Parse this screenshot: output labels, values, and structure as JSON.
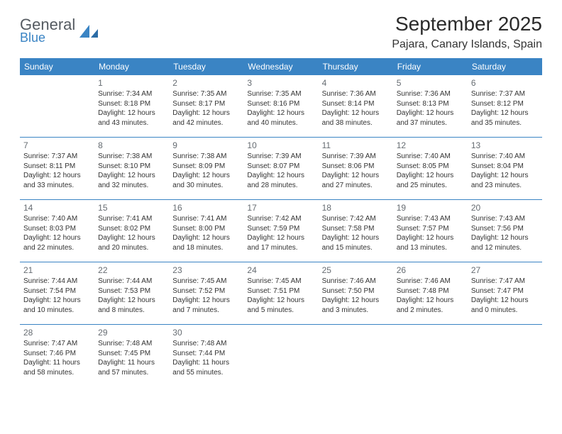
{
  "logo": {
    "main": "General",
    "sub": "Blue"
  },
  "title": "September 2025",
  "location": "Pajara, Canary Islands, Spain",
  "colors": {
    "header_bg": "#3a84c4",
    "header_text": "#ffffff",
    "rule": "#3a84c4",
    "logo_gray": "#555b61",
    "logo_blue": "#3a84c4",
    "daynum": "#666c72",
    "body_text": "#333333"
  },
  "weekdays": [
    "Sunday",
    "Monday",
    "Tuesday",
    "Wednesday",
    "Thursday",
    "Friday",
    "Saturday"
  ],
  "weeks": [
    [
      null,
      {
        "n": "1",
        "sr": "7:34 AM",
        "ss": "8:18 PM",
        "dl": "12 hours and 43 minutes."
      },
      {
        "n": "2",
        "sr": "7:35 AM",
        "ss": "8:17 PM",
        "dl": "12 hours and 42 minutes."
      },
      {
        "n": "3",
        "sr": "7:35 AM",
        "ss": "8:16 PM",
        "dl": "12 hours and 40 minutes."
      },
      {
        "n": "4",
        "sr": "7:36 AM",
        "ss": "8:14 PM",
        "dl": "12 hours and 38 minutes."
      },
      {
        "n": "5",
        "sr": "7:36 AM",
        "ss": "8:13 PM",
        "dl": "12 hours and 37 minutes."
      },
      {
        "n": "6",
        "sr": "7:37 AM",
        "ss": "8:12 PM",
        "dl": "12 hours and 35 minutes."
      }
    ],
    [
      {
        "n": "7",
        "sr": "7:37 AM",
        "ss": "8:11 PM",
        "dl": "12 hours and 33 minutes."
      },
      {
        "n": "8",
        "sr": "7:38 AM",
        "ss": "8:10 PM",
        "dl": "12 hours and 32 minutes."
      },
      {
        "n": "9",
        "sr": "7:38 AM",
        "ss": "8:09 PM",
        "dl": "12 hours and 30 minutes."
      },
      {
        "n": "10",
        "sr": "7:39 AM",
        "ss": "8:07 PM",
        "dl": "12 hours and 28 minutes."
      },
      {
        "n": "11",
        "sr": "7:39 AM",
        "ss": "8:06 PM",
        "dl": "12 hours and 27 minutes."
      },
      {
        "n": "12",
        "sr": "7:40 AM",
        "ss": "8:05 PM",
        "dl": "12 hours and 25 minutes."
      },
      {
        "n": "13",
        "sr": "7:40 AM",
        "ss": "8:04 PM",
        "dl": "12 hours and 23 minutes."
      }
    ],
    [
      {
        "n": "14",
        "sr": "7:40 AM",
        "ss": "8:03 PM",
        "dl": "12 hours and 22 minutes."
      },
      {
        "n": "15",
        "sr": "7:41 AM",
        "ss": "8:02 PM",
        "dl": "12 hours and 20 minutes."
      },
      {
        "n": "16",
        "sr": "7:41 AM",
        "ss": "8:00 PM",
        "dl": "12 hours and 18 minutes."
      },
      {
        "n": "17",
        "sr": "7:42 AM",
        "ss": "7:59 PM",
        "dl": "12 hours and 17 minutes."
      },
      {
        "n": "18",
        "sr": "7:42 AM",
        "ss": "7:58 PM",
        "dl": "12 hours and 15 minutes."
      },
      {
        "n": "19",
        "sr": "7:43 AM",
        "ss": "7:57 PM",
        "dl": "12 hours and 13 minutes."
      },
      {
        "n": "20",
        "sr": "7:43 AM",
        "ss": "7:56 PM",
        "dl": "12 hours and 12 minutes."
      }
    ],
    [
      {
        "n": "21",
        "sr": "7:44 AM",
        "ss": "7:54 PM",
        "dl": "12 hours and 10 minutes."
      },
      {
        "n": "22",
        "sr": "7:44 AM",
        "ss": "7:53 PM",
        "dl": "12 hours and 8 minutes."
      },
      {
        "n": "23",
        "sr": "7:45 AM",
        "ss": "7:52 PM",
        "dl": "12 hours and 7 minutes."
      },
      {
        "n": "24",
        "sr": "7:45 AM",
        "ss": "7:51 PM",
        "dl": "12 hours and 5 minutes."
      },
      {
        "n": "25",
        "sr": "7:46 AM",
        "ss": "7:50 PM",
        "dl": "12 hours and 3 minutes."
      },
      {
        "n": "26",
        "sr": "7:46 AM",
        "ss": "7:48 PM",
        "dl": "12 hours and 2 minutes."
      },
      {
        "n": "27",
        "sr": "7:47 AM",
        "ss": "7:47 PM",
        "dl": "12 hours and 0 minutes."
      }
    ],
    [
      {
        "n": "28",
        "sr": "7:47 AM",
        "ss": "7:46 PM",
        "dl": "11 hours and 58 minutes."
      },
      {
        "n": "29",
        "sr": "7:48 AM",
        "ss": "7:45 PM",
        "dl": "11 hours and 57 minutes."
      },
      {
        "n": "30",
        "sr": "7:48 AM",
        "ss": "7:44 PM",
        "dl": "11 hours and 55 minutes."
      },
      null,
      null,
      null,
      null
    ]
  ],
  "labels": {
    "sunrise": "Sunrise:",
    "sunset": "Sunset:",
    "daylight": "Daylight:"
  }
}
